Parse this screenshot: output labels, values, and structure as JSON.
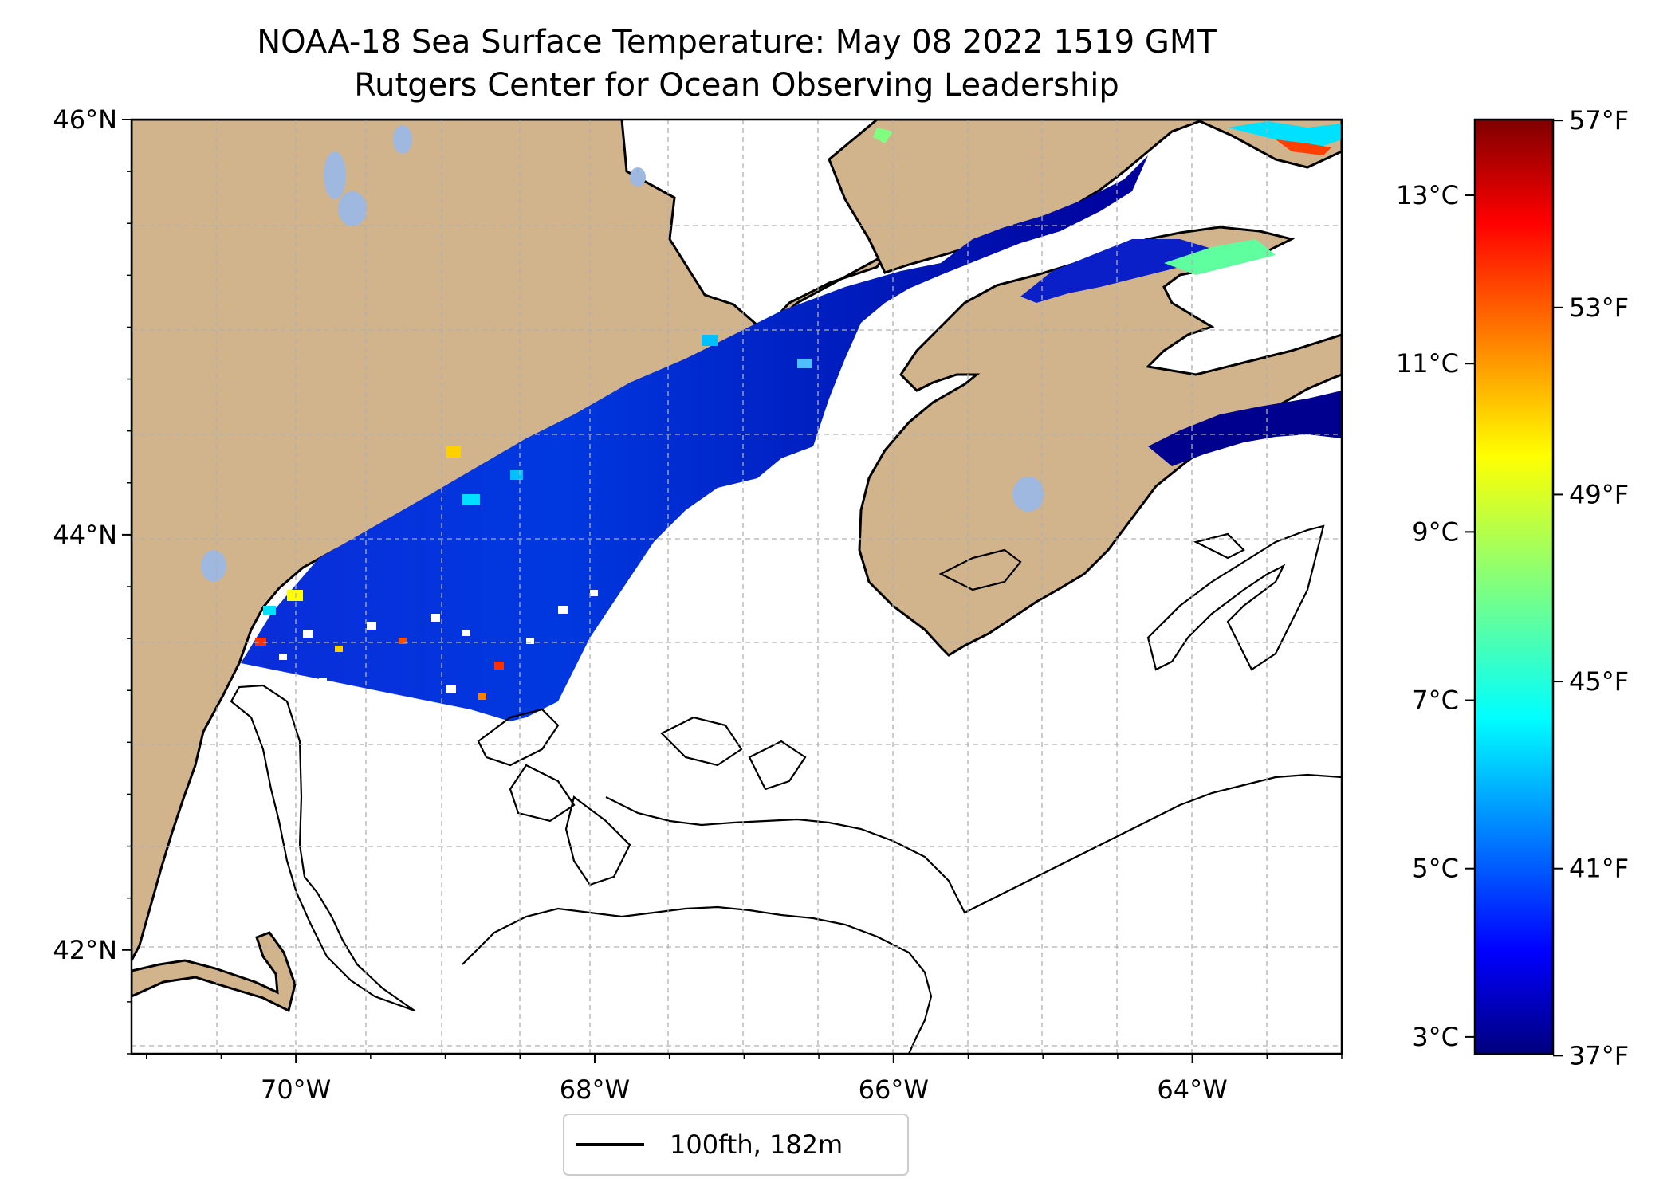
{
  "title": {
    "line1": "NOAA-18 Sea Surface Temperature: May 08 2022 1519 GMT",
    "line2": "Rutgers Center for Ocean Observing Leadership"
  },
  "map": {
    "lon_range": [
      -71.1,
      -63.0
    ],
    "lat_range": [
      41.5,
      46.0
    ],
    "lon_ticks": [
      {
        "value": -70,
        "label": "70°W"
      },
      {
        "value": -68,
        "label": "68°W"
      },
      {
        "value": -66,
        "label": "66°W"
      },
      {
        "value": -64,
        "label": "64°W"
      }
    ],
    "lat_ticks": [
      {
        "value": 46,
        "label": "46°N"
      },
      {
        "value": 44,
        "label": "44°N"
      },
      {
        "value": 42,
        "label": "42°N"
      }
    ],
    "colors": {
      "land": "#d2b48c",
      "lakes": "#9fb8e0",
      "ocean_nodata": "#ffffff",
      "coast": "#000000",
      "grid": "#b0b0b0"
    }
  },
  "legend": {
    "label": "100fth, 182m"
  },
  "colorbar": {
    "celsius_range": [
      2.8,
      13.9
    ],
    "celsius_ticks": [
      {
        "value": 3,
        "label": "3°C"
      },
      {
        "value": 5,
        "label": "5°C"
      },
      {
        "value": 7,
        "label": "7°C"
      },
      {
        "value": 9,
        "label": "9°C"
      },
      {
        "value": 11,
        "label": "11°C"
      },
      {
        "value": 13,
        "label": "13°C"
      }
    ],
    "fahrenheit_ticks": [
      {
        "value": 37,
        "label": "37°F"
      },
      {
        "value": 41,
        "label": "41°F"
      },
      {
        "value": 45,
        "label": "45°F"
      },
      {
        "value": 49,
        "label": "49°F"
      },
      {
        "value": 53,
        "label": "53°F"
      },
      {
        "value": 57,
        "label": "57°F"
      }
    ],
    "stops": [
      "#00007f",
      "#0000ff",
      "#007fff",
      "#00ffff",
      "#7fff7f",
      "#ffff00",
      "#ff7f00",
      "#ff0000",
      "#7f0000"
    ]
  }
}
